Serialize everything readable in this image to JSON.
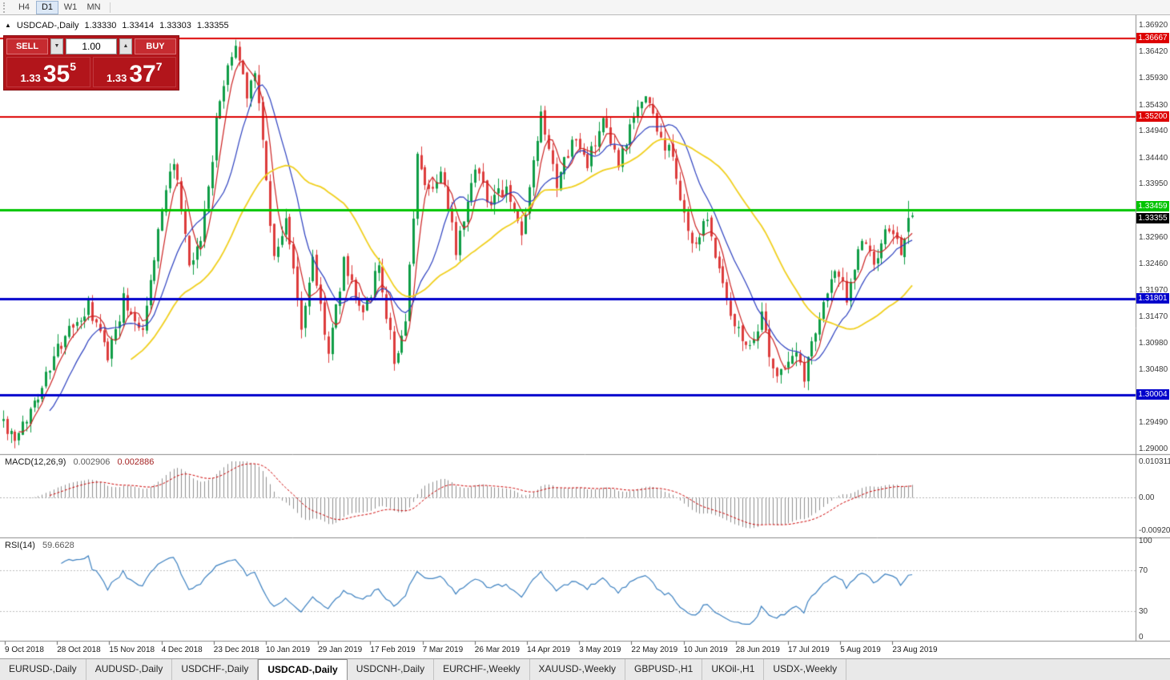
{
  "toolbar": {
    "timeframes": [
      {
        "label": "H4",
        "active": false
      },
      {
        "label": "D1",
        "active": true
      },
      {
        "label": "W1",
        "active": false
      },
      {
        "label": "MN",
        "active": false
      }
    ]
  },
  "header": {
    "collapse_icon": "▲",
    "symbol": "USDCAD-,Daily",
    "open": "1.33330",
    "high": "1.33414",
    "low": "1.33303",
    "close": "1.33355"
  },
  "trade_panel": {
    "sell_label": "SELL",
    "buy_label": "BUY",
    "volume": "1.00",
    "decrease_icon": "▼",
    "increase_icon": "▲",
    "sell_price": {
      "prefix": "1.33",
      "digits": "35",
      "pips": "5"
    },
    "buy_price": {
      "prefix": "1.33",
      "digits": "37",
      "pips": "7"
    },
    "panel_color": "#b2151b"
  },
  "price_axis": {
    "labels": [
      "1.36920",
      "1.36420",
      "1.35930",
      "1.35430",
      "1.34940",
      "1.34440",
      "1.33950",
      "1.32960",
      "1.32460",
      "1.31970",
      "1.31470",
      "1.30980",
      "1.30480",
      "1.29490",
      "1.29000"
    ]
  },
  "macd_panel": {
    "title": "MACD(12,26,9)",
    "main_value": "0.002906",
    "signal_value": "0.002886",
    "axis_labels": [
      "0.010311",
      "0.00",
      "-0.009203"
    ]
  },
  "rsi_panel": {
    "title": "RSI(14)",
    "value": "59.6628",
    "axis_labels": [
      "100",
      "70",
      "30",
      "0"
    ]
  },
  "bottom_tabs": [
    {
      "label": "EURUSD-,Daily",
      "active": false
    },
    {
      "label": "AUDUSD-,Daily",
      "active": false
    },
    {
      "label": "USDCHF-,Daily",
      "active": false
    },
    {
      "label": "USDCAD-,Daily",
      "active": true
    },
    {
      "label": "USDCNH-,Daily",
      "active": false
    },
    {
      "label": "EURCHF-,Weekly",
      "active": false
    },
    {
      "label": "XAUUSD-,Weekly",
      "active": false
    },
    {
      "label": "GBPUSD-,H1",
      "active": false
    },
    {
      "label": "UKOil-,H1",
      "active": false
    },
    {
      "label": "USDX-,Weekly",
      "active": false
    }
  ],
  "chart_data": {
    "type": "candlestick",
    "symbol": "USDCAD",
    "timeframe": "Daily",
    "last_ohlc": {
      "open": 1.3333,
      "high": 1.33414,
      "low": 1.33303,
      "close": 1.33355
    },
    "y_axis": {
      "min": 1.29,
      "max": 1.3692,
      "tick_step": 0.00495
    },
    "x_labels": [
      "9 Oct 2018",
      "28 Oct 2018",
      "15 Nov 2018",
      "4 Dec 2018",
      "23 Dec 2018",
      "10 Jan 2019",
      "29 Jan 2019",
      "17 Feb 2019",
      "7 Mar 2019",
      "26 Mar 2019",
      "14 Apr 2019",
      "3 May 2019",
      "22 May 2019",
      "10 Jun 2019",
      "28 Jun 2019",
      "17 Jul 2019",
      "5 Aug 2019",
      "23 Aug 2019"
    ],
    "bars": 236,
    "price_path": [
      [
        0,
        1.2952
      ],
      [
        3,
        1.2907
      ],
      [
        8,
        1.299
      ],
      [
        15,
        1.3098
      ],
      [
        22,
        1.3162
      ],
      [
        27,
        1.3075
      ],
      [
        31,
        1.3178
      ],
      [
        36,
        1.3125
      ],
      [
        41,
        1.335
      ],
      [
        44,
        1.3442
      ],
      [
        48,
        1.3235
      ],
      [
        51,
        1.3285
      ],
      [
        56,
        1.356
      ],
      [
        60,
        1.3655
      ],
      [
        63,
        1.3565
      ],
      [
        65,
        1.3615
      ],
      [
        70,
        1.3258
      ],
      [
        73,
        1.333
      ],
      [
        77,
        1.3128
      ],
      [
        80,
        1.3255
      ],
      [
        84,
        1.3078
      ],
      [
        88,
        1.3248
      ],
      [
        93,
        1.3155
      ],
      [
        97,
        1.3238
      ],
      [
        101,
        1.3068
      ],
      [
        104,
        1.3125
      ],
      [
        107,
        1.344
      ],
      [
        110,
        1.3385
      ],
      [
        113,
        1.3418
      ],
      [
        117,
        1.3275
      ],
      [
        122,
        1.3435
      ],
      [
        126,
        1.3355
      ],
      [
        130,
        1.339
      ],
      [
        134,
        1.3295
      ],
      [
        139,
        1.3515
      ],
      [
        143,
        1.3385
      ],
      [
        147,
        1.348
      ],
      [
        151,
        1.3435
      ],
      [
        155,
        1.3505
      ],
      [
        159,
        1.3425
      ],
      [
        164,
        1.354
      ],
      [
        166,
        1.3562
      ],
      [
        170,
        1.3478
      ],
      [
        173,
        1.3442
      ],
      [
        178,
        1.3272
      ],
      [
        182,
        1.3328
      ],
      [
        188,
        1.3155
      ],
      [
        192,
        1.3095
      ],
      [
        196,
        1.3142
      ],
      [
        200,
        1.303
      ],
      [
        204,
        1.3082
      ],
      [
        207,
        1.3038
      ],
      [
        211,
        1.3152
      ],
      [
        215,
        1.3232
      ],
      [
        218,
        1.3185
      ],
      [
        222,
        1.3292
      ],
      [
        225,
        1.3245
      ],
      [
        229,
        1.3312
      ],
      [
        232,
        1.3265
      ],
      [
        235,
        1.3336
      ]
    ],
    "candle_colors": {
      "up": "#0f9d46",
      "down": "#dd3c3c"
    },
    "moving_averages": [
      {
        "period": 5,
        "type": "sma",
        "color": "#cc2222"
      },
      {
        "period": 13,
        "type": "sma",
        "color": "#2b3fbf"
      },
      {
        "period": 34,
        "type": "sma",
        "color": "#f0cf1e"
      }
    ],
    "hlines": [
      {
        "price": 1.36667,
        "label": "1.36667",
        "color": "#dd0000",
        "width": 2
      },
      {
        "price": 1.352,
        "label": "1.35200",
        "color": "#dd0000",
        "width": 2
      },
      {
        "price": 1.33459,
        "label": "1.33459",
        "color": "#00c400",
        "width": 3
      },
      {
        "price": 1.31801,
        "label": "1.31801",
        "color": "#0000cc",
        "width": 3
      },
      {
        "price": 1.30004,
        "label": "1.30004",
        "color": "#0000cc",
        "width": 3
      }
    ],
    "current_price": {
      "value": 1.33355,
      "label": "1.33355",
      "badge_color": "#000000"
    },
    "macd": {
      "fast": 12,
      "slow": 26,
      "signal": 9,
      "main_last": 0.002906,
      "signal_last": 0.002886,
      "axis_max": 0.010311,
      "axis_min": -0.009203,
      "histogram_color": "#8f8f8f",
      "signal_color": "#cc0000"
    },
    "rsi": {
      "period": 14,
      "last": 59.6628,
      "levels": [
        30,
        70
      ],
      "color": "#3c80c0",
      "axis": [
        0,
        30,
        70,
        100
      ]
    }
  }
}
